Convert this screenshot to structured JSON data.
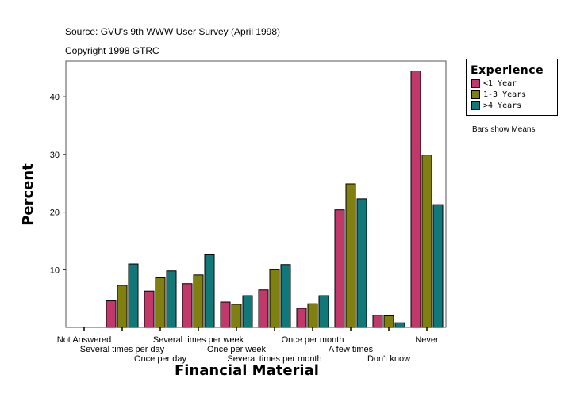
{
  "source": "Source: GVU's 9th WWW User Survey (April 1998)",
  "copyright": "Copyright 1998 GTRC",
  "legend_note": "Bars show Means",
  "chart_data": {
    "type": "bar",
    "title": "",
    "xlabel": "Financial Material",
    "ylabel": "Percent",
    "ylim": [
      0,
      46
    ],
    "yticks": [
      10,
      20,
      30,
      40
    ],
    "grid": false,
    "legend": {
      "title": "Experience",
      "placement": "right"
    },
    "categories": [
      "Not Answered",
      "Several times per day",
      "Once per day",
      "Several times per week",
      "Once per week",
      "Several times per month",
      "Once per month",
      "A few times",
      "Don't know",
      "Never"
    ],
    "series": [
      {
        "name": "<1 Year",
        "color": "#c0396a",
        "values": [
          0,
          4.6,
          6.3,
          7.6,
          4.4,
          6.5,
          3.3,
          20.4,
          2.1,
          44.5
        ]
      },
      {
        "name": "1-3 Years",
        "color": "#808010",
        "values": [
          0,
          7.3,
          8.6,
          9.1,
          4.0,
          10.0,
          4.1,
          24.9,
          2.0,
          29.9
        ]
      },
      {
        "name": ">4 Years",
        "color": "#107878",
        "values": [
          0,
          11.0,
          9.8,
          12.6,
          5.5,
          10.9,
          5.5,
          22.3,
          0.8,
          21.3
        ]
      }
    ]
  }
}
